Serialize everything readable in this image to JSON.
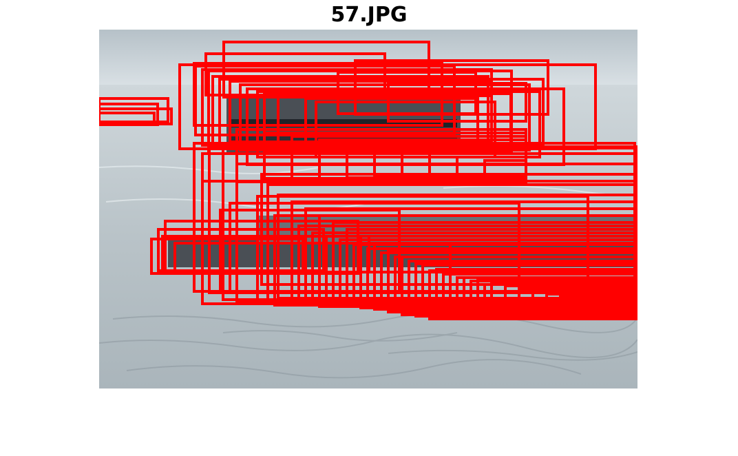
{
  "figure": {
    "title": "57.JPG"
  },
  "colors": {
    "box": "#ff0000",
    "sky_top": "#b8c3c9",
    "sky_horizon": "#d5dde1",
    "water_top": "#c5ced3",
    "water_bottom": "#a9b4ba",
    "ship_hull": "#4a4f55",
    "ship_cabin": "#2b2f35"
  },
  "image": {
    "subject": "ship-on-water",
    "box_count_estimate": 90
  }
}
